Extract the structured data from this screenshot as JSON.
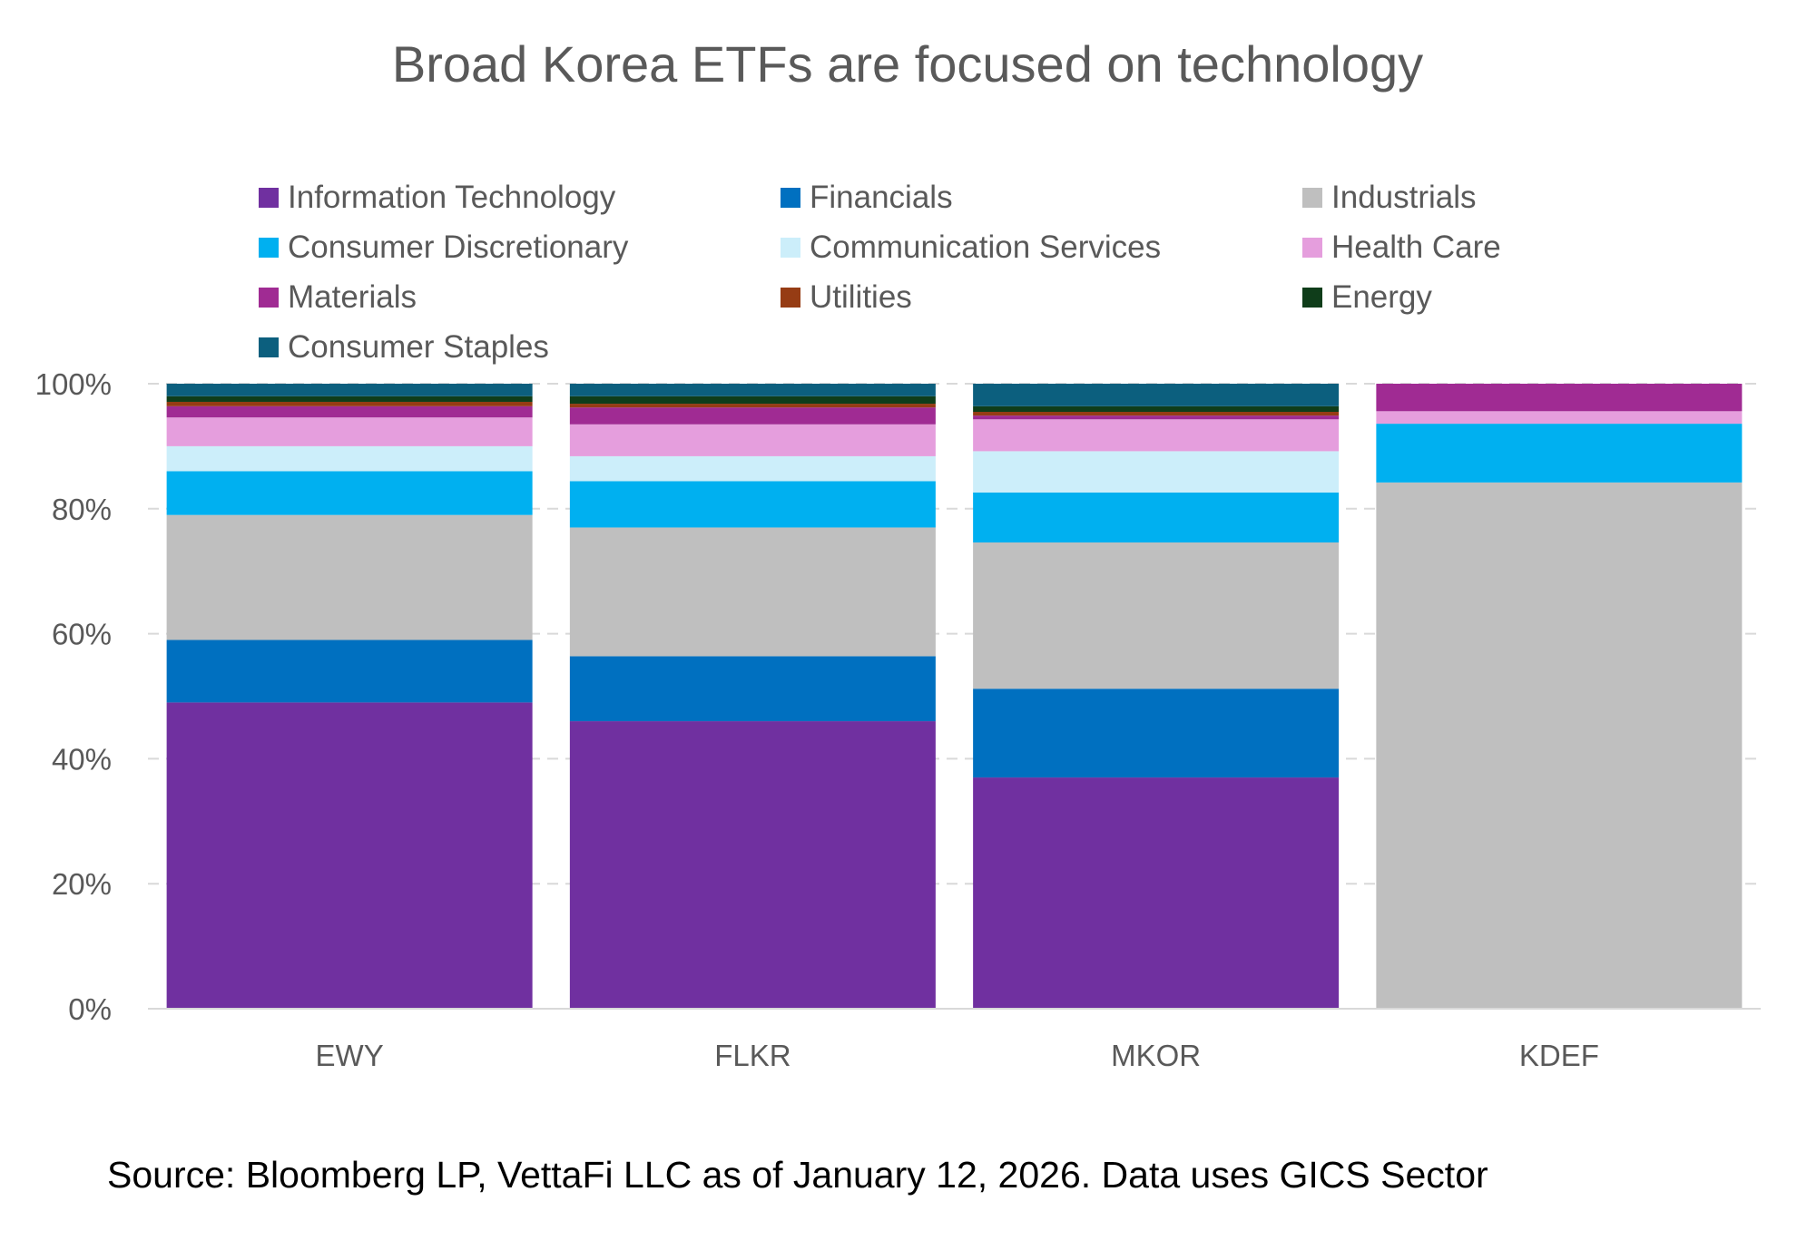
{
  "chart_data": {
    "type": "bar",
    "stacked": true,
    "title": "Broad Korea ETFs are focused on technology",
    "categories": [
      "EWY",
      "FLKR",
      "MKOR",
      "KDEF"
    ],
    "ylim": [
      0,
      100
    ],
    "yticks": [
      "0%",
      "20%",
      "40%",
      "60%",
      "80%",
      "100%"
    ],
    "grid": true,
    "legend_position": "top",
    "series": [
      {
        "name": "Information Technology",
        "color": "#7030A0",
        "values": [
          49.0,
          46.0,
          37.0,
          0.0
        ]
      },
      {
        "name": "Financials",
        "color": "#0070C0",
        "values": [
          10.0,
          10.4,
          14.2,
          0.0
        ]
      },
      {
        "name": "Industrials",
        "color": "#BFBFBF",
        "values": [
          20.0,
          20.6,
          23.4,
          84.2
        ]
      },
      {
        "name": "Consumer Discretionary",
        "color": "#00B0F0",
        "values": [
          7.0,
          7.4,
          8.0,
          9.4
        ]
      },
      {
        "name": "Communication Services",
        "color": "#CCEEFA",
        "values": [
          4.0,
          4.0,
          6.6,
          0.0
        ]
      },
      {
        "name": "Health Care",
        "color": "#E59EDD",
        "values": [
          4.6,
          5.1,
          5.1,
          2.0
        ]
      },
      {
        "name": "Materials",
        "color": "#A02B93",
        "values": [
          1.8,
          2.7,
          0.6,
          4.4
        ]
      },
      {
        "name": "Utilities",
        "color": "#963C14",
        "values": [
          0.7,
          0.6,
          0.6,
          0.0
        ]
      },
      {
        "name": "Energy",
        "color": "#0F3D1A",
        "values": [
          0.9,
          1.2,
          0.9,
          0.0
        ]
      },
      {
        "name": "Consumer Staples",
        "color": "#0C5F7E",
        "values": [
          2.0,
          2.0,
          3.6,
          0.0
        ]
      }
    ]
  },
  "source": "Source: Bloomberg LP, VettaFi LLC as of January 12, 2026. Data uses GICS Sector"
}
